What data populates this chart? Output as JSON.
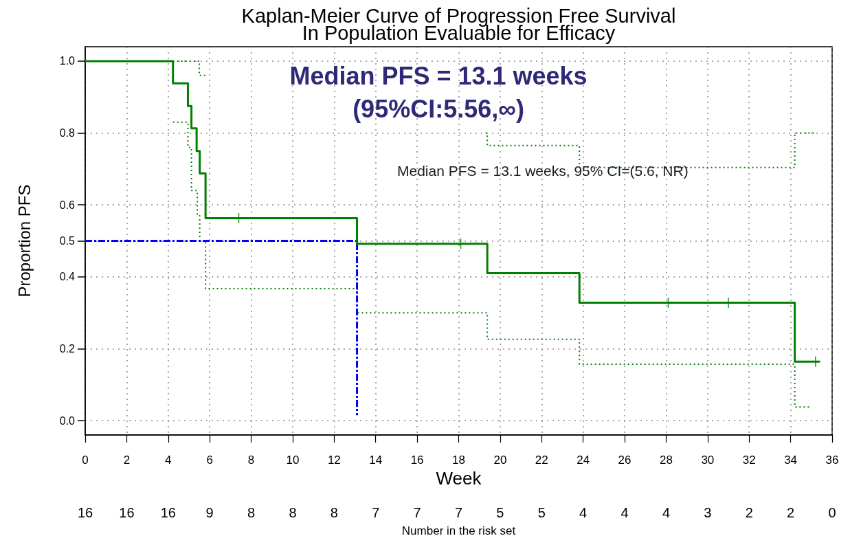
{
  "chart_data": [
    {
      "type": "step",
      "title": "Kaplan-Meier Curve of Progression Free Survival",
      "subtitle": "In Population Evaluable for Efficacy",
      "xlabel": "Week",
      "ylabel": "Proportion PFS",
      "annotations": [
        "Median PFS = 13.1 weeks",
        "(95%CI:5.56,∞)",
        "Median PFS = 13.1 weeks, 95% CI=(5.6, NR)"
      ],
      "series": [
        {
          "color": "#007f00",
          "line_style": "dotted",
          "marker": "none",
          "x": [
            4.23,
            4.95,
            5.12,
            5.4,
            5.52,
            5.8,
            13.1,
            19.38,
            23.82,
            34.2,
            34.95
          ],
          "values": [
            0.83,
            0.76,
            0.64,
            0.57,
            0.5,
            0.367,
            0.3,
            0.226,
            0.157,
            0.038,
            0.038
          ]
        },
        {
          "color": "#007f00",
          "line_style": "dotted",
          "marker": "none",
          "x": [
            4.23,
            5.5,
            5.8,
            19.3,
            19.38,
            23.82,
            34.2,
            35.2
          ],
          "values": [
            1,
            0.96,
            null,
            0.8,
            0.765,
            0.704,
            0.8,
            0.8
          ]
        },
        {
          "type": "line",
          "color": "#0000ff",
          "line_style": "dashed",
          "marker": "none",
          "x": [
            0,
            13.1,
            13.1
          ],
          "values": [
            0.5,
            0.5,
            0.015
          ]
        },
        {
          "color": "#007f00",
          "line_style": "solid",
          "marker": "none",
          "x": [
            0,
            4.23,
            4.95,
            5.12,
            5.37,
            5.52,
            5.8,
            13.1,
            19.38,
            23.82,
            34.2,
            35.4
          ],
          "values": [
            1,
            0.938,
            0.875,
            0.813,
            0.75,
            0.688,
            0.563,
            0.492,
            0.41,
            0.328,
            0.164,
            0.164
          ]
        },
        {
          "type": "scatter",
          "color": "#007f00",
          "marker": "cross",
          "x": [
            7.4,
            18.1,
            28.1,
            31.0,
            35.2
          ],
          "values": [
            0.563,
            0.492,
            0.328,
            0.328,
            0.164
          ]
        }
      ],
      "xlim": [
        0,
        36
      ],
      "xticks": [
        0,
        2,
        4,
        6,
        8,
        10,
        12,
        14,
        16,
        18,
        20,
        22,
        24,
        26,
        28,
        30,
        32,
        34,
        36
      ],
      "ylim": [
        -0.04,
        1.04
      ],
      "yticks": [
        {
          "value": 0,
          "label": "0.0"
        },
        0.2,
        0.4,
        0.5,
        0.6,
        0.8,
        {
          "value": 1,
          "label": "1.0"
        }
      ],
      "grid": true
    },
    {
      "type": "other",
      "xlabel": "Number in the risk set",
      "categories": [
        null,
        null,
        null,
        null,
        null,
        null,
        null,
        null,
        null,
        null,
        null,
        null,
        null,
        null,
        null,
        null,
        null,
        null,
        null
      ],
      "values": [
        16,
        16,
        16,
        9,
        8,
        8,
        8,
        7,
        7,
        7,
        5,
        5,
        4,
        4,
        4,
        3,
        2,
        2,
        0
      ],
      "data_labels": true
    }
  ]
}
